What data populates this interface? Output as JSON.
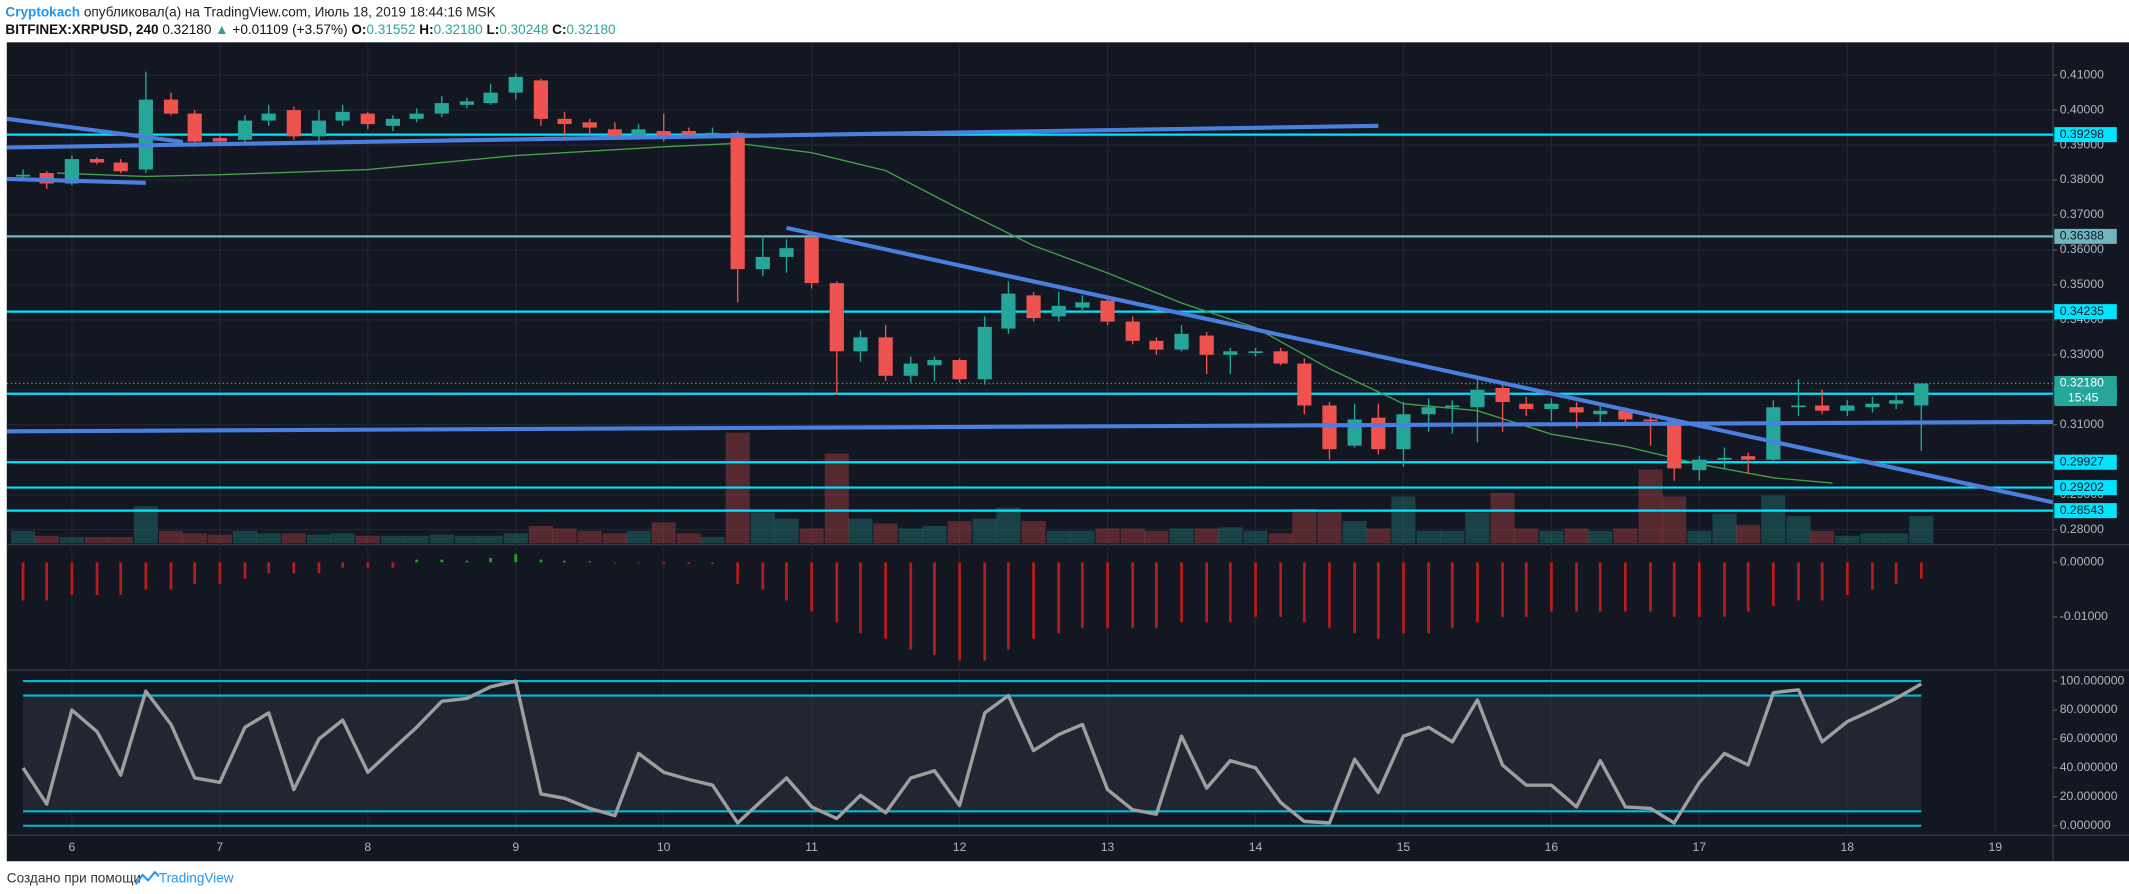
{
  "header": {
    "author": "Cryptokach",
    "published": "опубликовал(а) на TradingView.com, Июль 18, 2019 18:44:16 MSK",
    "symbol": "BITFINEX:XRPUSD, 240",
    "last": "0.32180",
    "arrow": "▲",
    "change": "+0.01109 (+3.57%)",
    "o_label": "O:",
    "o": "0.31552",
    "h_label": "H:",
    "h": "0.32180",
    "l_label": "L:",
    "l": "0.30248",
    "c_label": "C:",
    "c": "0.32180"
  },
  "footer": {
    "text": "Создано при помощи",
    "brand": "TradingView"
  },
  "chart_data": [
    {
      "type": "candlestick",
      "x": [
        5.67,
        5.83,
        6,
        6.17,
        6.33,
        6.5,
        6.67,
        6.83,
        7,
        7.17,
        7.33,
        7.5,
        7.67,
        7.83,
        8,
        8.17,
        8.33,
        8.5,
        8.67,
        8.83,
        9,
        9.17,
        9.33,
        9.5,
        9.67,
        9.83,
        10,
        10.17,
        10.33,
        10.5,
        10.67,
        10.83,
        11,
        11.17,
        11.33,
        11.5,
        11.67,
        11.83,
        12,
        12.17,
        12.33,
        12.5,
        12.67,
        12.83,
        13,
        13.17,
        13.33,
        13.5,
        13.67,
        13.83,
        14,
        14.17,
        14.33,
        14.5,
        14.67,
        14.83,
        15,
        15.17,
        15.33,
        15.5,
        15.67,
        15.83,
        16,
        16.17,
        16.33,
        16.5,
        16.67,
        16.83,
        17,
        17.17,
        17.33,
        17.5,
        17.67,
        17.83,
        18,
        18.17,
        18.33,
        18.5
      ],
      "open": [
        0.381,
        0.382,
        0.379,
        0.386,
        0.385,
        0.383,
        0.403,
        0.399,
        0.392,
        0.3915,
        0.397,
        0.4,
        0.3925,
        0.397,
        0.399,
        0.3955,
        0.3975,
        0.399,
        0.4015,
        0.402,
        0.405,
        0.4085,
        0.3975,
        0.3965,
        0.3945,
        0.3925,
        0.394,
        0.394,
        0.393,
        0.3935,
        0.3545,
        0.358,
        0.3635,
        0.3505,
        0.331,
        0.335,
        0.324,
        0.327,
        0.3285,
        0.323,
        0.3375,
        0.347,
        0.341,
        0.3435,
        0.3455,
        0.3395,
        0.334,
        0.3315,
        0.3355,
        0.33,
        0.3305,
        0.331,
        0.3275,
        0.3155,
        0.304,
        0.312,
        0.303,
        0.313,
        0.315,
        0.315,
        0.3205,
        0.316,
        0.3145,
        0.315,
        0.313,
        0.314,
        0.3115,
        0.311,
        0.297,
        0.3,
        0.301,
        0.3,
        0.315,
        0.3155,
        0.314,
        0.315,
        0.316,
        0.3155
      ],
      "high": [
        0.383,
        0.3825,
        0.387,
        0.3865,
        0.386,
        0.411,
        0.405,
        0.4,
        0.3925,
        0.3985,
        0.4015,
        0.401,
        0.4,
        0.4015,
        0.3995,
        0.3985,
        0.4005,
        0.404,
        0.4035,
        0.4075,
        0.4105,
        0.409,
        0.3995,
        0.3975,
        0.3965,
        0.396,
        0.399,
        0.395,
        0.395,
        0.394,
        0.364,
        0.363,
        0.3645,
        0.351,
        0.337,
        0.3385,
        0.3295,
        0.3295,
        0.329,
        0.341,
        0.351,
        0.348,
        0.348,
        0.347,
        0.3465,
        0.341,
        0.335,
        0.3385,
        0.3365,
        0.332,
        0.332,
        0.332,
        0.329,
        0.3165,
        0.316,
        0.316,
        0.3165,
        0.3175,
        0.317,
        0.323,
        0.3225,
        0.318,
        0.3175,
        0.3165,
        0.3155,
        0.315,
        0.3125,
        0.312,
        0.301,
        0.3035,
        0.302,
        0.317,
        0.323,
        0.32,
        0.317,
        0.318,
        0.319,
        0.3218
      ],
      "low": [
        0.38,
        0.3775,
        0.3785,
        0.3845,
        0.382,
        0.382,
        0.3985,
        0.3895,
        0.39,
        0.3905,
        0.3955,
        0.3915,
        0.391,
        0.3955,
        0.3945,
        0.394,
        0.3965,
        0.398,
        0.4005,
        0.4015,
        0.403,
        0.3955,
        0.3925,
        0.393,
        0.3915,
        0.3915,
        0.391,
        0.392,
        0.392,
        0.345,
        0.3525,
        0.3535,
        0.349,
        0.3185,
        0.328,
        0.3225,
        0.322,
        0.3225,
        0.322,
        0.3215,
        0.336,
        0.3395,
        0.3395,
        0.342,
        0.3385,
        0.333,
        0.33,
        0.331,
        0.3245,
        0.3245,
        0.3295,
        0.327,
        0.313,
        0.3,
        0.3035,
        0.3015,
        0.298,
        0.308,
        0.3075,
        0.305,
        0.308,
        0.3125,
        0.311,
        0.309,
        0.3105,
        0.3105,
        0.304,
        0.294,
        0.294,
        0.2975,
        0.296,
        0.2995,
        0.3125,
        0.313,
        0.3125,
        0.3135,
        0.3145,
        0.3025
      ],
      "close": [
        0.3815,
        0.379,
        0.386,
        0.385,
        0.3825,
        0.403,
        0.399,
        0.391,
        0.391,
        0.397,
        0.399,
        0.3925,
        0.397,
        0.3995,
        0.396,
        0.3975,
        0.399,
        0.402,
        0.4025,
        0.405,
        0.4095,
        0.3975,
        0.396,
        0.395,
        0.3925,
        0.3945,
        0.3925,
        0.393,
        0.3935,
        0.3545,
        0.358,
        0.3605,
        0.3505,
        0.331,
        0.335,
        0.324,
        0.3275,
        0.3285,
        0.323,
        0.338,
        0.3475,
        0.3405,
        0.344,
        0.345,
        0.3395,
        0.334,
        0.3315,
        0.336,
        0.33,
        0.331,
        0.331,
        0.3275,
        0.3155,
        0.303,
        0.3115,
        0.303,
        0.313,
        0.315,
        0.3155,
        0.32,
        0.3165,
        0.3145,
        0.316,
        0.3135,
        0.314,
        0.3115,
        0.311,
        0.2975,
        0.3,
        0.3005,
        0.3,
        0.315,
        0.3155,
        0.314,
        0.3155,
        0.316,
        0.317,
        0.3218
      ],
      "volume": [
        10,
        6,
        5,
        5,
        5,
        30,
        10,
        8,
        7,
        10,
        8,
        8,
        7,
        8,
        6,
        6,
        6,
        7,
        6,
        6,
        8,
        14,
        12,
        10,
        8,
        10,
        17,
        8,
        5,
        90,
        25,
        20,
        12,
        73,
        20,
        16,
        12,
        14,
        18,
        20,
        29,
        18,
        10,
        10,
        12,
        12,
        10,
        12,
        12,
        13,
        10,
        8,
        28,
        26,
        18,
        12,
        38,
        10,
        10,
        25,
        41,
        12,
        10,
        12,
        10,
        12,
        60,
        38,
        10,
        24,
        15,
        39,
        22,
        10,
        6,
        8,
        8,
        22
      ],
      "up_color": "#26a69a",
      "down_color": "#ef5350",
      "ma": {
        "x": [
          5.9,
          6.5,
          7,
          8,
          9,
          10,
          10.5,
          11,
          11.5,
          12,
          12.5,
          13,
          13.5,
          14,
          14.5,
          15,
          15.5,
          16,
          16.5,
          17,
          17.5,
          17.9
        ],
        "values": [
          0.382,
          0.381,
          0.3815,
          0.383,
          0.387,
          0.3895,
          0.3905,
          0.3878,
          0.3827,
          0.3717,
          0.3612,
          0.3534,
          0.3448,
          0.3378,
          0.326,
          0.316,
          0.314,
          0.3073,
          0.3038,
          0.2987,
          0.2948,
          0.2933
        ],
        "color": "#43a047"
      },
      "trendlines": [
        {
          "x": [
            5.56,
            6.75
          ],
          "y": [
            0.3975,
            0.3909
          ]
        },
        {
          "x": [
            5.56,
            14.83
          ],
          "y": [
            0.3893,
            0.3955
          ]
        },
        {
          "x": [
            5.56,
            6.5
          ],
          "y": [
            0.3803,
            0.3792
          ]
        },
        {
          "x": [
            10.83,
            19.39
          ],
          "y": [
            0.3663,
            0.2878
          ]
        },
        {
          "x": [
            5.56,
            19.39
          ],
          "y": [
            0.3081,
            0.3108
          ]
        }
      ],
      "trend_color": "#4a7fe0",
      "levels": [
        0.39298,
        0.36388,
        0.34235,
        0.31886,
        0.29927,
        0.29202,
        0.28543
      ],
      "level_colors": [
        "#00e5ff",
        "#6fb5bf",
        "#00e5ff",
        "#00e5ff",
        "#00e5ff",
        "#00e5ff",
        "#00e5ff"
      ],
      "last_price": 0.3218,
      "last_label": "0.32180",
      "countdown": "15:45",
      "xlim": [
        5.56,
        19.39
      ],
      "xticks": [
        6,
        7,
        8,
        9,
        10,
        11,
        12,
        13,
        14,
        15,
        16,
        17,
        18,
        19
      ],
      "ylim": [
        0.2761,
        0.419
      ],
      "yticks": [
        {
          "value": 0.41,
          "label": "0.41000"
        },
        {
          "value": 0.4,
          "label": "0.40000"
        },
        {
          "value": 0.39,
          "label": "0.39000"
        },
        {
          "value": 0.38,
          "label": "0.38000"
        },
        {
          "value": 0.37,
          "label": "0.37000"
        },
        {
          "value": 0.36,
          "label": "0.36000"
        },
        {
          "value": 0.35,
          "label": "0.35000"
        },
        {
          "value": 0.34,
          "label": "0.34000"
        },
        {
          "value": 0.33,
          "label": "0.33000"
        },
        {
          "value": 0.32,
          "label": "0.32000"
        },
        {
          "value": 0.31,
          "label": "0.31000"
        },
        {
          "value": 0.3,
          "label": "0.30000"
        },
        {
          "value": 0.29,
          "label": "0.29000"
        },
        {
          "value": 0.28,
          "label": "0.28000"
        }
      ],
      "grid": true
    },
    {
      "type": "histogram",
      "values": [
        -0.007,
        -0.007,
        -0.006,
        -0.006,
        -0.006,
        -0.005,
        -0.005,
        -0.004,
        -0.004,
        -0.003,
        -0.002,
        -0.002,
        -0.002,
        -0.001,
        -0.001,
        -0.001,
        0.0005,
        0.0005,
        0.0003,
        0.0008,
        0.0015,
        0.0005,
        0.0003,
        0.0002,
        -0.0002,
        -0.0002,
        -0.0003,
        -0.0003,
        -0.0003,
        -0.004,
        -0.005,
        -0.007,
        -0.009,
        -0.011,
        -0.013,
        -0.014,
        -0.016,
        -0.017,
        -0.018,
        -0.018,
        -0.016,
        -0.014,
        -0.013,
        -0.012,
        -0.012,
        -0.012,
        -0.012,
        -0.011,
        -0.011,
        -0.011,
        -0.01,
        -0.01,
        -0.011,
        -0.012,
        -0.013,
        -0.014,
        -0.013,
        -0.013,
        -0.012,
        -0.011,
        -0.01,
        -0.01,
        -0.009,
        -0.009,
        -0.009,
        -0.009,
        -0.009,
        -0.01,
        -0.01,
        -0.01,
        -0.009,
        -0.008,
        -0.007,
        -0.007,
        -0.006,
        -0.005,
        -0.004,
        -0.003
      ],
      "pos_color": "#1fa51f",
      "neg_color": "#b71c1c",
      "ylim": [
        -0.0195,
        0.003
      ],
      "yticks": [
        {
          "value": 0,
          "label": "0.00000"
        },
        {
          "value": -0.01,
          "label": "-0.01000"
        }
      ]
    },
    {
      "type": "line",
      "values": [
        40,
        15,
        80,
        65,
        35,
        93,
        70,
        33,
        30,
        68,
        78,
        25,
        60,
        73,
        37,
        53,
        68,
        86,
        88,
        96,
        100,
        22,
        19,
        12,
        7,
        50,
        37,
        32,
        28,
        2,
        18,
        33,
        13,
        5,
        21,
        9,
        33,
        38,
        14,
        78,
        90,
        52,
        63,
        70,
        25,
        11,
        8,
        62,
        26,
        45,
        40,
        16,
        3,
        2,
        46,
        23,
        62,
        68,
        58,
        87,
        42,
        28,
        28,
        13,
        45,
        13,
        12,
        2,
        30,
        50,
        42,
        92,
        94,
        58,
        72,
        80,
        88,
        98
      ],
      "color": "#9e9e9e",
      "levels": [
        100,
        90,
        10,
        0
      ],
      "level_color": "#00bcd4",
      "band": [
        10,
        90
      ],
      "ylim": [
        -6.6,
        106.6
      ],
      "yticks": [
        {
          "value": 100,
          "label": "100.000000"
        },
        {
          "value": 80,
          "label": "80.000000"
        },
        {
          "value": 60,
          "label": "60.000000"
        },
        {
          "value": 40,
          "label": "40.000000"
        },
        {
          "value": 20,
          "label": "20.000000"
        },
        {
          "value": 0,
          "label": "0.000000"
        }
      ]
    }
  ]
}
